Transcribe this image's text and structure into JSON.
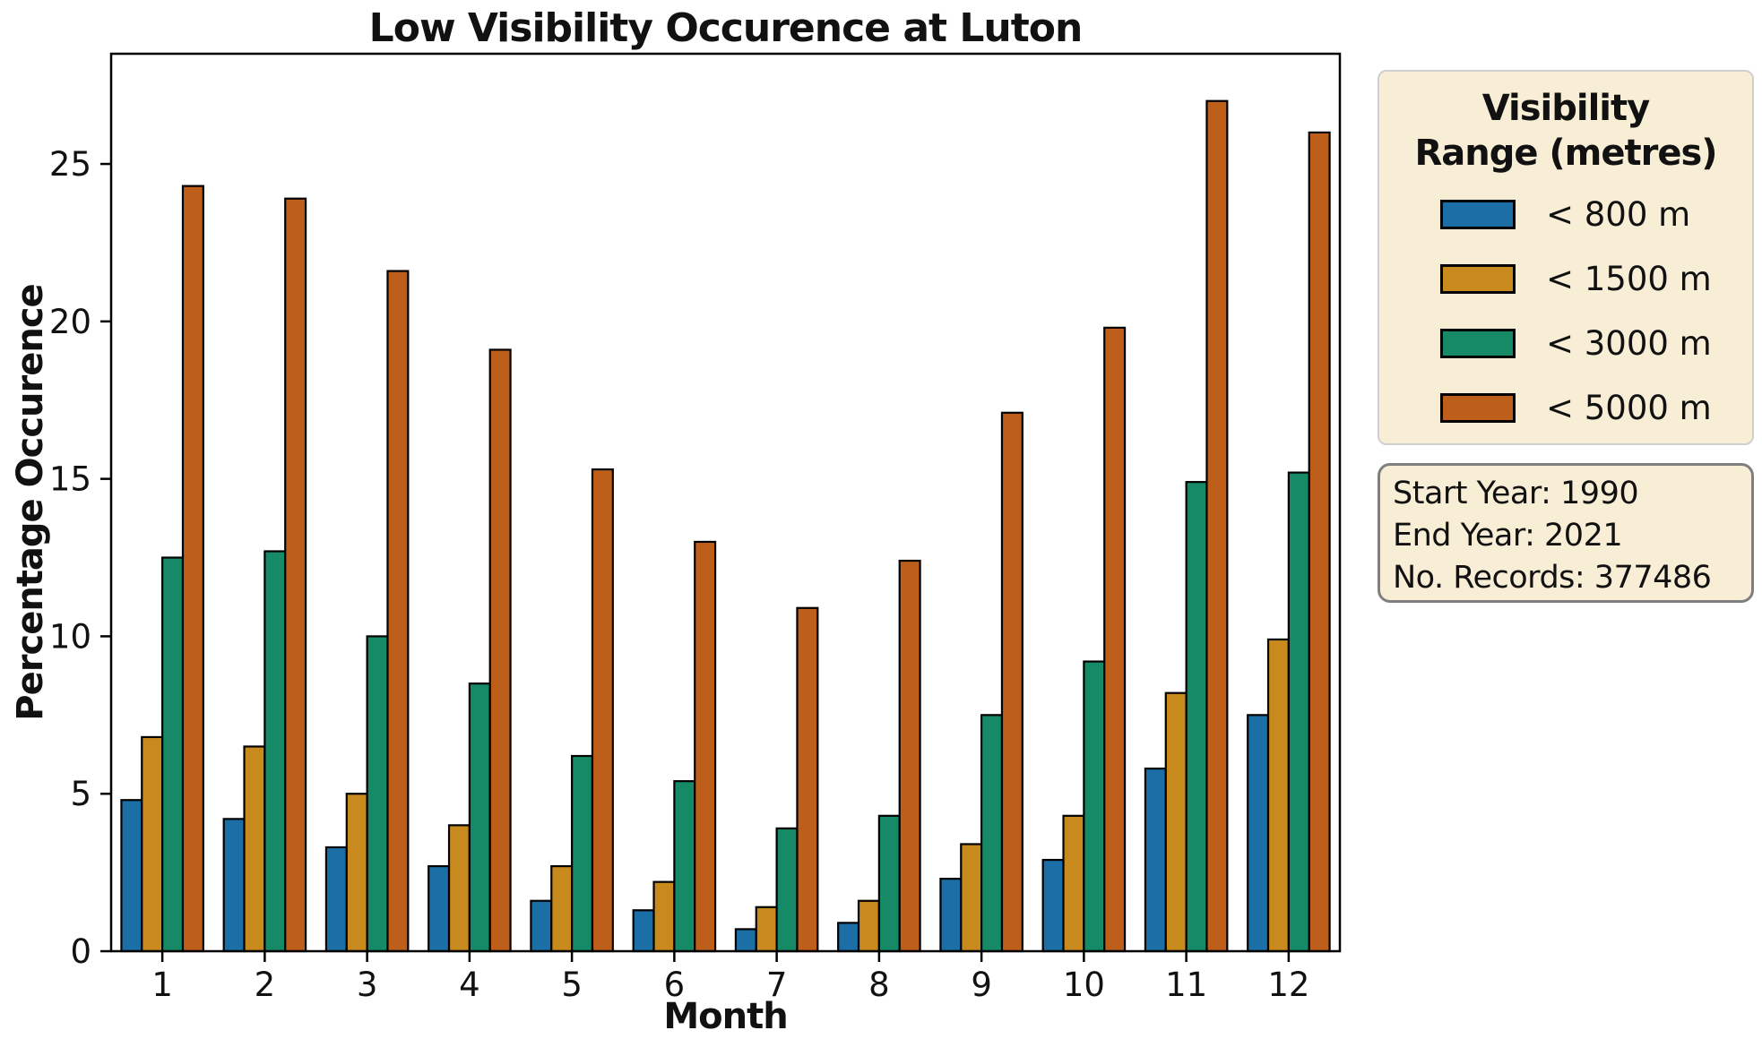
{
  "chart_data": {
    "type": "bar",
    "title": "Low Visibility Occurence at Luton",
    "xlabel": "Month",
    "ylabel": "Percentage Occurence",
    "categories": [
      1,
      2,
      3,
      4,
      5,
      6,
      7,
      8,
      9,
      10,
      11,
      12
    ],
    "series": [
      {
        "name": "< 800 m",
        "color": "#1b6ea6",
        "values": [
          4.8,
          4.2,
          3.3,
          2.7,
          1.6,
          1.3,
          0.7,
          0.9,
          2.3,
          2.9,
          5.8,
          7.5
        ]
      },
      {
        "name": "< 1500 m",
        "color": "#c98a1d",
        "values": [
          6.8,
          6.5,
          5.0,
          4.0,
          2.7,
          2.2,
          1.4,
          1.6,
          3.4,
          4.3,
          8.2,
          9.9
        ]
      },
      {
        "name": "< 3000 m",
        "color": "#168a67",
        "values": [
          12.5,
          12.7,
          10.0,
          8.5,
          6.2,
          5.4,
          3.9,
          4.3,
          7.5,
          9.2,
          14.9,
          15.2
        ]
      },
      {
        "name": "< 5000 m",
        "color": "#bd5f1a",
        "values": [
          24.3,
          23.9,
          21.6,
          19.1,
          15.3,
          13.0,
          10.9,
          12.4,
          17.1,
          19.8,
          27.0,
          26.0
        ]
      }
    ],
    "ylim": [
      0,
      28.5
    ],
    "yticks": [
      0,
      5,
      10,
      15,
      20,
      25
    ],
    "grid": false,
    "bar_edge_color": "#000000",
    "legend_position": "outside-right"
  },
  "legend": {
    "title_line1": "Visibility",
    "title_line2": "Range (metres)"
  },
  "info": {
    "lines": [
      "Start Year: 1990",
      "End Year: 2021",
      "No. Records: 377486"
    ]
  },
  "colors": {
    "background": "#ffffff",
    "panel_background": "#f8eed6",
    "legend_border": "#cfcfcf",
    "info_border": "#7f7f7f",
    "axis": "#000000"
  }
}
